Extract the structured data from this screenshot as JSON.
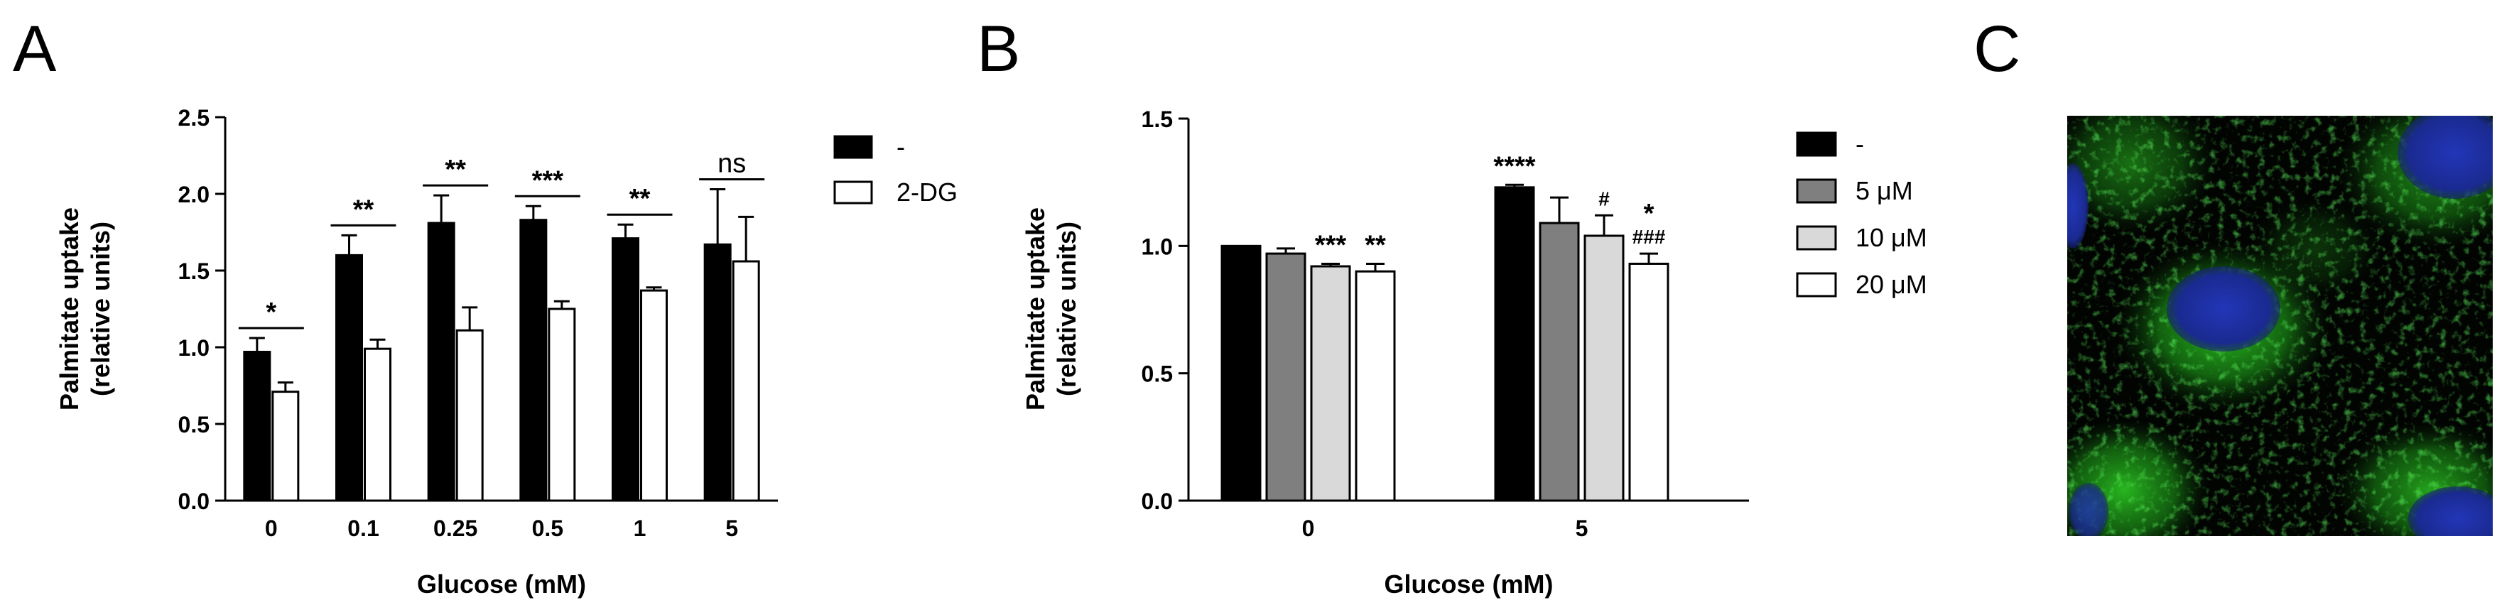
{
  "panels": [
    {
      "letter": "A"
    },
    {
      "letter": "B"
    },
    {
      "letter": "C"
    }
  ],
  "colors": {
    "black": "#000000",
    "dark_gray": "#7f7f7f",
    "light_gray": "#d9d9d9",
    "white": "#ffffff",
    "micro_background": "#020402",
    "micro_green": "#21c21a",
    "micro_blue": "#1d2ea8"
  },
  "chart_data": [
    {
      "type": "bar",
      "panel": "A",
      "categories": [
        "0",
        "0.1",
        "0.25",
        "0.5",
        "1",
        "5"
      ],
      "xlabel": "Glucose (mM)",
      "ylabel": [
        "Palmitate uptake",
        "(relative units)"
      ],
      "ylim": [
        0,
        2.5
      ],
      "yticks": [
        "0.0",
        "0.5",
        "1.0",
        "1.5",
        "2.0",
        "2.5"
      ],
      "legend_position": "right",
      "series": [
        {
          "name": "-",
          "fill": "#000000",
          "values": [
            0.97,
            1.6,
            1.81,
            1.83,
            1.71,
            1.67
          ],
          "errors": [
            0.09,
            0.13,
            0.18,
            0.09,
            0.09,
            0.36
          ]
        },
        {
          "name": "2-DG",
          "fill": "#ffffff",
          "values": [
            0.71,
            0.99,
            1.11,
            1.25,
            1.37,
            1.56
          ],
          "errors": [
            0.06,
            0.06,
            0.15,
            0.05,
            0.02,
            0.29
          ]
        }
      ],
      "annotations": [
        "*",
        "**",
        "**",
        "***",
        "**",
        "ns"
      ]
    },
    {
      "type": "bar",
      "panel": "B",
      "categories": [
        "0",
        "5"
      ],
      "xlabel": "Glucose (mM)",
      "ylabel": [
        "Palmitate uptake",
        "(relative units)"
      ],
      "ylim": [
        0,
        1.5
      ],
      "yticks": [
        "0.0",
        "0.5",
        "1.0",
        "1.5"
      ],
      "legend_position": "right",
      "series": [
        {
          "name": "-",
          "fill": "#000000",
          "values": [
            1.0,
            1.23
          ],
          "errors": [
            0.0,
            0.01
          ],
          "labels": [
            "",
            "****"
          ]
        },
        {
          "name": "5 μM",
          "fill": "#7f7f7f",
          "values": [
            0.97,
            1.09
          ],
          "errors": [
            0.02,
            0.1
          ],
          "labels": [
            "",
            ""
          ]
        },
        {
          "name": "10 μM",
          "fill": "#d9d9d9",
          "values": [
            0.92,
            1.04
          ],
          "errors": [
            0.01,
            0.08
          ],
          "labels": [
            "***",
            "#"
          ]
        },
        {
          "name": "20 μM",
          "fill": "#ffffff",
          "values": [
            0.9,
            0.93
          ],
          "errors": [
            0.03,
            0.04
          ],
          "labels": [
            "**",
            "*\n###"
          ]
        }
      ]
    }
  ]
}
